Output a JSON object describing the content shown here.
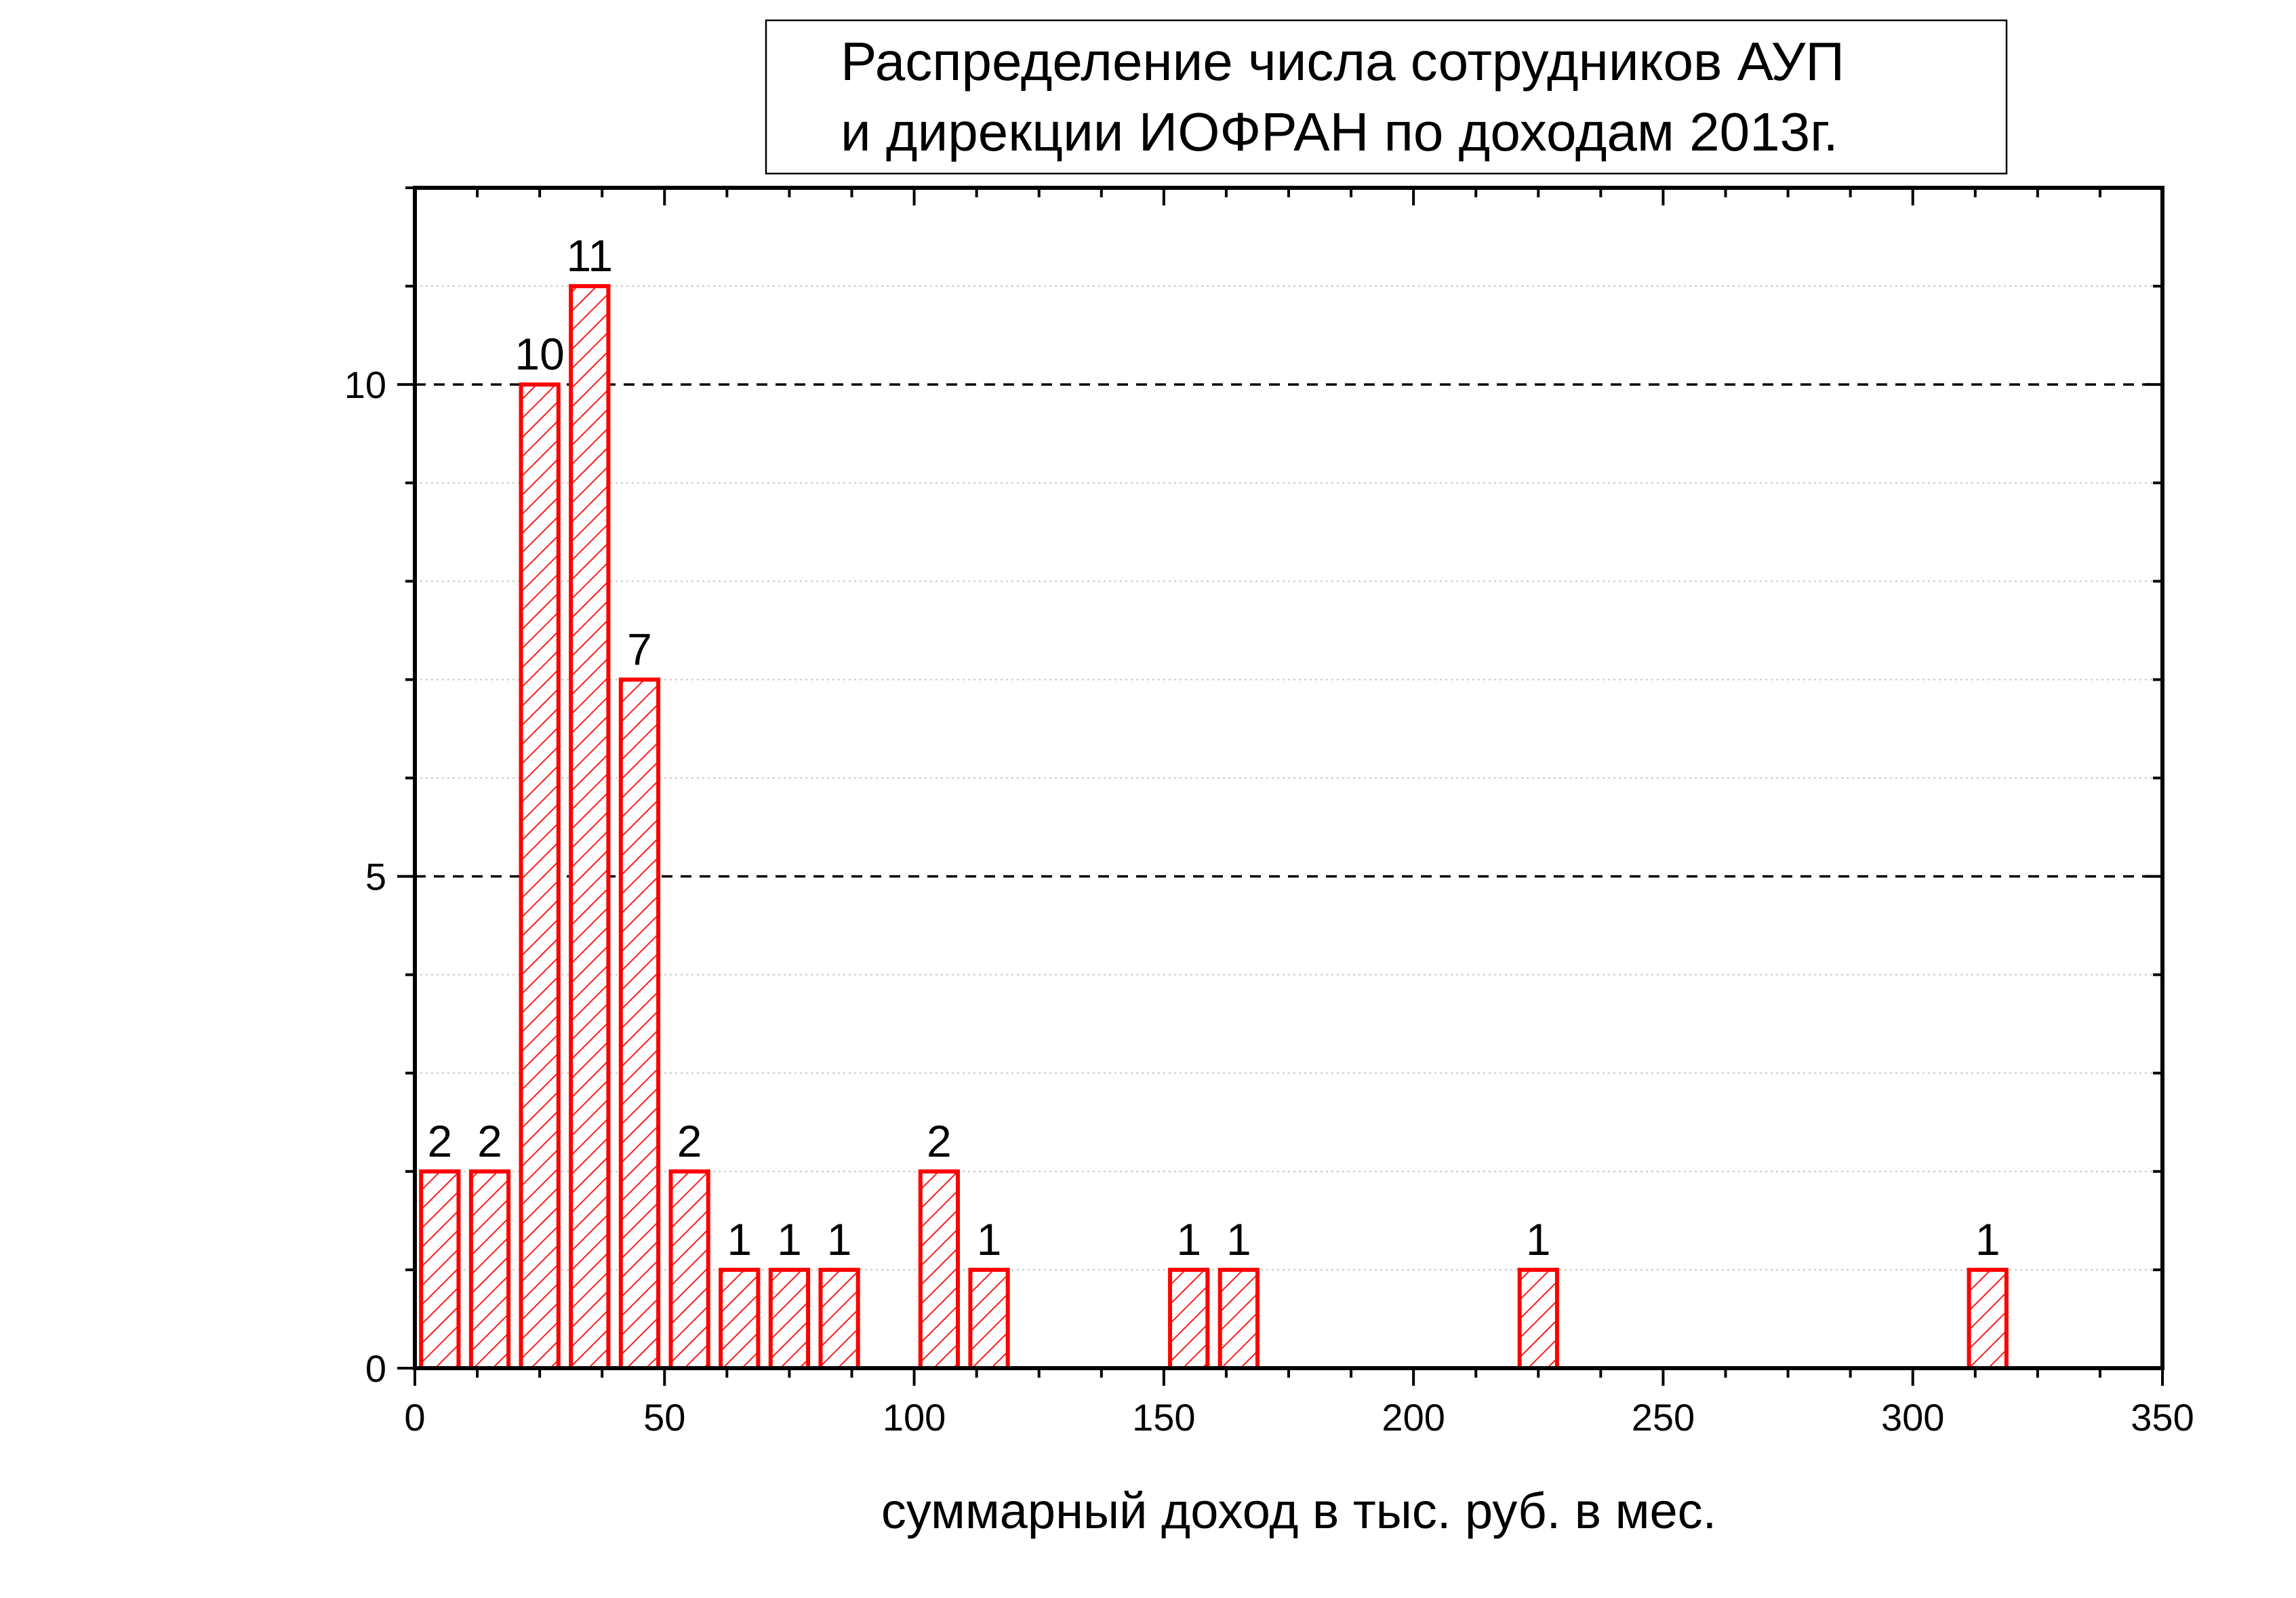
{
  "chart_data": {
    "type": "bar",
    "title": [
      "Распределение числа сотрудников АУП",
      "и дирекции ИОФРАН по доходам  2013г."
    ],
    "xlabel": "суммарный доход в тыс. руб. в мес.",
    "ylabel": "",
    "xlim": [
      0,
      350
    ],
    "ylim": [
      0,
      12
    ],
    "bar_width": 7.5,
    "x_ticks": [
      0,
      50,
      100,
      150,
      200,
      250,
      300,
      350
    ],
    "y_ticks": [
      0,
      5,
      10
    ],
    "y_dashed_gridlines": [
      5,
      10
    ],
    "y_dotted_gridlines": [
      1,
      2,
      3,
      4,
      6,
      7,
      8,
      9,
      11
    ],
    "bar_color": "#ff0000",
    "bar_fill": "hatched diagonal",
    "points": [
      {
        "x": 5,
        "y": 2,
        "label": "2"
      },
      {
        "x": 15,
        "y": 2,
        "label": "2"
      },
      {
        "x": 25,
        "y": 10,
        "label": "10"
      },
      {
        "x": 35,
        "y": 11,
        "label": "11"
      },
      {
        "x": 45,
        "y": 7,
        "label": "7"
      },
      {
        "x": 55,
        "y": 2,
        "label": "2"
      },
      {
        "x": 65,
        "y": 1,
        "label": "1"
      },
      {
        "x": 75,
        "y": 1,
        "label": "1"
      },
      {
        "x": 85,
        "y": 1,
        "label": "1"
      },
      {
        "x": 105,
        "y": 2,
        "label": "2"
      },
      {
        "x": 115,
        "y": 1,
        "label": "1"
      },
      {
        "x": 155,
        "y": 1,
        "label": "1"
      },
      {
        "x": 165,
        "y": 1,
        "label": "1"
      },
      {
        "x": 225,
        "y": 1,
        "label": "1"
      },
      {
        "x": 315,
        "y": 1,
        "label": "1"
      }
    ]
  }
}
